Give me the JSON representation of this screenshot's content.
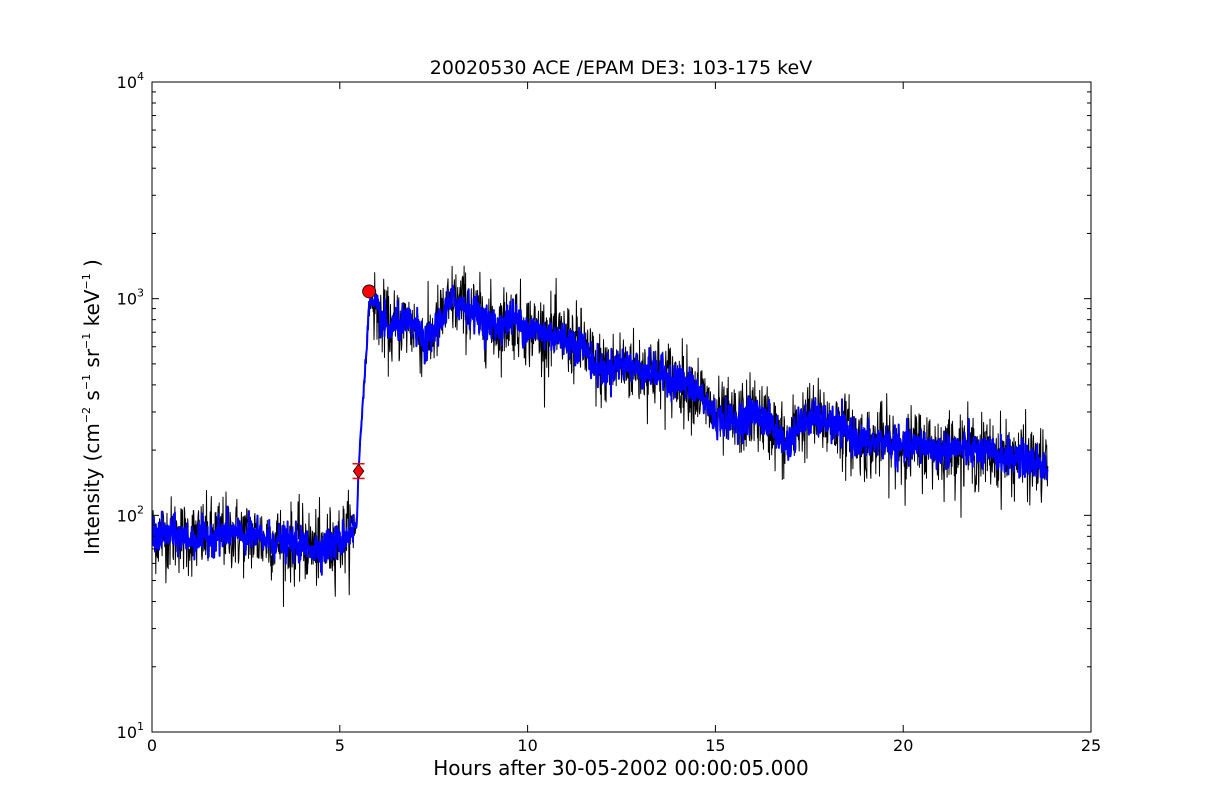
{
  "chart_data": {
    "type": "line",
    "title": "20020530 ACE /EPAM DE3: 103-175 keV",
    "xlabel": "Hours after 30-05-2002 00:00:05.000",
    "ylabel": {
      "prefix": "Intensity (cm",
      "cm_exp": "−2",
      "s": " s",
      "s_exp": "−1",
      "sr": " sr",
      "sr_exp": "−1",
      "kev": " keV",
      "kev_exp": "−1",
      "suffix": " )"
    },
    "xlim": [
      0,
      25
    ],
    "ylim": [
      10,
      10000
    ],
    "yscale": "log",
    "grid": false,
    "x_ticks": [
      0,
      5,
      10,
      15,
      20,
      25
    ],
    "x_tick_labels": [
      "0",
      "5",
      "10",
      "15",
      "20",
      "25"
    ],
    "y_ticks": [
      10,
      100,
      1000,
      10000
    ],
    "y_tick_labels": [
      {
        "base": "10",
        "exp": "1"
      },
      {
        "base": "10",
        "exp": "2"
      },
      {
        "base": "10",
        "exp": "3"
      },
      {
        "base": "10",
        "exp": "4"
      }
    ],
    "series": [
      {
        "color": "#000000",
        "style": "noisy raw data",
        "points": [
          [
            0.0,
            80
          ],
          [
            0.5,
            82
          ],
          [
            1.0,
            78
          ],
          [
            1.5,
            80
          ],
          [
            2.0,
            84
          ],
          [
            2.5,
            80
          ],
          [
            3.0,
            78
          ],
          [
            3.5,
            75
          ],
          [
            4.0,
            73
          ],
          [
            4.5,
            70
          ],
          [
            5.0,
            76
          ],
          [
            5.45,
            90
          ],
          [
            5.5,
            160
          ],
          [
            5.55,
            230
          ],
          [
            5.62,
            350
          ],
          [
            5.7,
            550
          ],
          [
            5.78,
            930
          ],
          [
            5.82,
            980
          ],
          [
            6.0,
            860
          ],
          [
            6.3,
            720
          ],
          [
            6.7,
            780
          ],
          [
            7.0,
            740
          ],
          [
            7.3,
            610
          ],
          [
            7.6,
            760
          ],
          [
            8.0,
            980
          ],
          [
            8.4,
            920
          ],
          [
            8.8,
            800
          ],
          [
            9.2,
            740
          ],
          [
            9.6,
            820
          ],
          [
            10.0,
            730
          ],
          [
            10.5,
            690
          ],
          [
            11.0,
            650
          ],
          [
            11.5,
            600
          ],
          [
            11.8,
            480
          ],
          [
            12.0,
            470
          ],
          [
            12.5,
            500
          ],
          [
            13.0,
            470
          ],
          [
            13.5,
            450
          ],
          [
            14.0,
            420
          ],
          [
            14.5,
            380
          ],
          [
            14.8,
            320
          ],
          [
            15.0,
            280
          ],
          [
            15.5,
            270
          ],
          [
            16.0,
            300
          ],
          [
            16.5,
            260
          ],
          [
            16.9,
            210
          ],
          [
            17.2,
            260
          ],
          [
            17.5,
            280
          ],
          [
            18.0,
            270
          ],
          [
            18.5,
            240
          ],
          [
            19.0,
            215
          ],
          [
            19.5,
            220
          ],
          [
            20.0,
            205
          ],
          [
            20.5,
            210
          ],
          [
            21.0,
            200
          ],
          [
            21.5,
            205
          ],
          [
            22.0,
            195
          ],
          [
            22.5,
            190
          ],
          [
            23.0,
            185
          ],
          [
            23.5,
            175
          ],
          [
            23.85,
            165
          ]
        ]
      },
      {
        "color": "#0000ff",
        "style": "smoothed data",
        "points": [
          [
            0.0,
            80
          ],
          [
            0.5,
            82
          ],
          [
            1.0,
            78
          ],
          [
            1.5,
            80
          ],
          [
            2.0,
            84
          ],
          [
            2.5,
            80
          ],
          [
            3.0,
            78
          ],
          [
            3.5,
            75
          ],
          [
            4.0,
            73
          ],
          [
            4.5,
            70
          ],
          [
            5.0,
            76
          ],
          [
            5.45,
            90
          ],
          [
            5.5,
            160
          ],
          [
            5.55,
            230
          ],
          [
            5.62,
            350
          ],
          [
            5.7,
            550
          ],
          [
            5.78,
            930
          ],
          [
            5.82,
            980
          ],
          [
            6.0,
            860
          ],
          [
            6.3,
            720
          ],
          [
            6.7,
            780
          ],
          [
            7.0,
            740
          ],
          [
            7.3,
            610
          ],
          [
            7.6,
            760
          ],
          [
            8.0,
            980
          ],
          [
            8.4,
            920
          ],
          [
            8.8,
            800
          ],
          [
            9.2,
            740
          ],
          [
            9.6,
            820
          ],
          [
            10.0,
            730
          ],
          [
            10.5,
            690
          ],
          [
            11.0,
            650
          ],
          [
            11.5,
            600
          ],
          [
            11.8,
            480
          ],
          [
            12.0,
            470
          ],
          [
            12.5,
            500
          ],
          [
            13.0,
            470
          ],
          [
            13.5,
            450
          ],
          [
            14.0,
            420
          ],
          [
            14.5,
            380
          ],
          [
            14.8,
            320
          ],
          [
            15.0,
            280
          ],
          [
            15.5,
            270
          ],
          [
            16.0,
            300
          ],
          [
            16.5,
            260
          ],
          [
            16.9,
            210
          ],
          [
            17.2,
            260
          ],
          [
            17.5,
            280
          ],
          [
            18.0,
            270
          ],
          [
            18.5,
            240
          ],
          [
            19.0,
            215
          ],
          [
            19.5,
            220
          ],
          [
            20.0,
            205
          ],
          [
            20.5,
            210
          ],
          [
            21.0,
            200
          ],
          [
            21.5,
            205
          ],
          [
            22.0,
            195
          ],
          [
            22.5,
            190
          ],
          [
            23.0,
            185
          ],
          [
            23.5,
            175
          ],
          [
            23.85,
            165
          ]
        ]
      }
    ],
    "markers": [
      {
        "shape": "diamond",
        "color": "#ff0000",
        "x": 5.5,
        "y": 160,
        "y_err": [
          148,
          173
        ]
      },
      {
        "shape": "circle",
        "color": "#ff0000",
        "x": 5.78,
        "y": 1080
      }
    ]
  }
}
